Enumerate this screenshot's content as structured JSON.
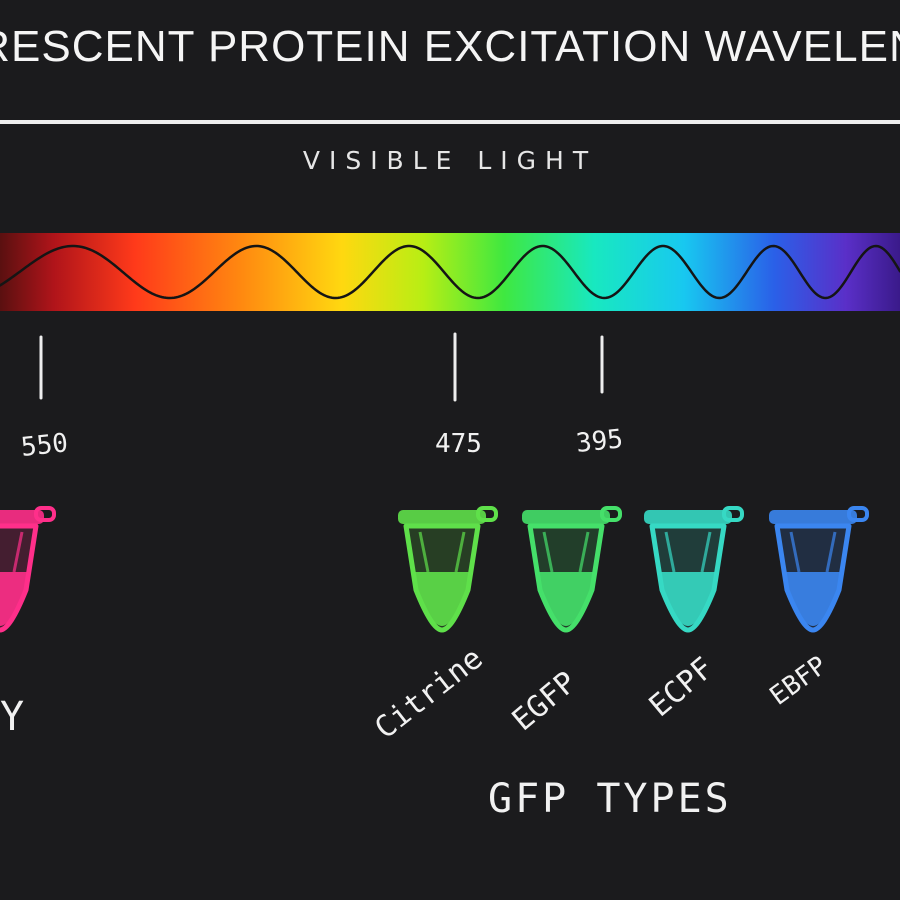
{
  "title": "RESCENT PROTEIN EXCITATION WAVELEN",
  "subtitle": "VISIBLE LIGHT",
  "markers": [
    {
      "label": "550"
    },
    {
      "label": "475"
    },
    {
      "label": "395"
    }
  ],
  "tubes": [
    {
      "label": "",
      "color": "#ff2f8a"
    },
    {
      "label": "Citrine",
      "color": "#5fe04a"
    },
    {
      "label": "EGFP",
      "color": "#45e06a"
    },
    {
      "label": "ECPF",
      "color": "#36d9c4"
    },
    {
      "label": "EBFP",
      "color": "#3b86f0"
    }
  ],
  "partial_label": "Y",
  "group_label": "GFP TYPES",
  "colors": {
    "background": "#1b1b1d",
    "text": "#f2f2f2"
  }
}
